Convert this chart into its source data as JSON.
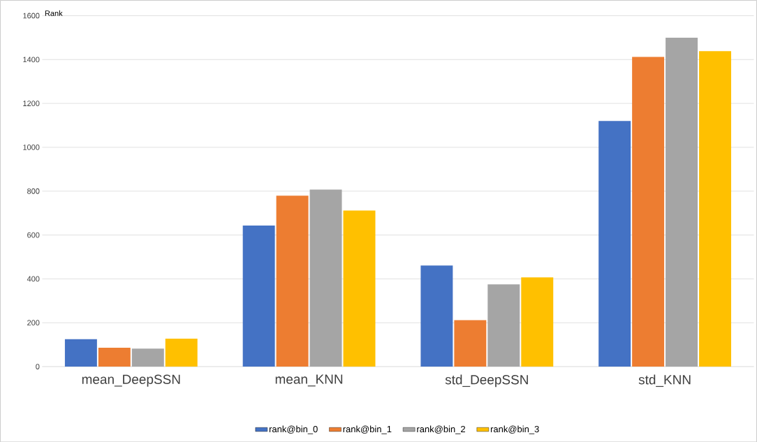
{
  "chart_data": {
    "type": "bar",
    "ylabel": "Rank",
    "categories": [
      "mean_DeepSSN",
      "mean_KNN",
      "std_DeepSSN",
      "std_KNN"
    ],
    "series": [
      {
        "name": "rank@bin_0",
        "color": "#4472c4",
        "values": [
          125,
          643,
          461,
          1120
        ]
      },
      {
        "name": "rank@bin_1",
        "color": "#ed7d31",
        "values": [
          86,
          779,
          212,
          1412
        ]
      },
      {
        "name": "rank@bin_2",
        "color": "#a5a5a5",
        "values": [
          82,
          807,
          375,
          1500
        ]
      },
      {
        "name": "rank@bin_3",
        "color": "#ffc000",
        "values": [
          127,
          712,
          407,
          1438
        ]
      }
    ],
    "ylim": [
      0,
      1600
    ],
    "yticks": [
      0,
      200,
      400,
      600,
      800,
      1000,
      1200,
      1400,
      1600
    ],
    "grid": "y",
    "legend": "bottom"
  }
}
